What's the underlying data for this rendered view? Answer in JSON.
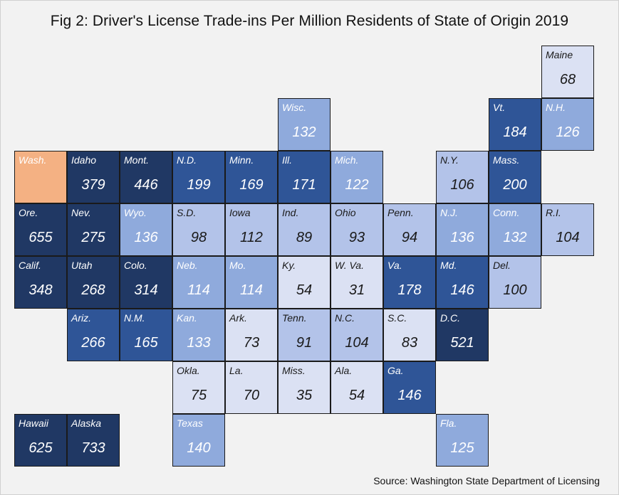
{
  "title": "Fig 2: Driver's License Trade-ins Per Million Residents of State of Origin 2019",
  "source": "Source: Washington State Department of Licensing",
  "colors": {
    "home": "#f4b183",
    "lightest": "#dbe1f3",
    "light": "#b3c3e9",
    "medium": "#8faadc",
    "dark": "#2f5597",
    "darkest": "#203864"
  },
  "chart_data": {
    "type": "heatmap",
    "layout": "state tile grid map",
    "title": "Fig 2: Driver's License Trade-ins Per Million Residents of State of Origin 2019",
    "cells": [
      {
        "state": "Maine",
        "value": "68",
        "col": 10,
        "row": 0,
        "shade": "lightest"
      },
      {
        "state": "Wisc.",
        "value": "132",
        "col": 5,
        "row": 1,
        "shade": "medium"
      },
      {
        "state": "Vt.",
        "value": "184",
        "col": 9,
        "row": 1,
        "shade": "dark"
      },
      {
        "state": "N.H.",
        "value": "126",
        "col": 10,
        "row": 1,
        "shade": "medium"
      },
      {
        "state": "Wash.",
        "value": "",
        "col": 0,
        "row": 2,
        "shade": "home"
      },
      {
        "state": "Idaho",
        "value": "379",
        "col": 1,
        "row": 2,
        "shade": "darkest"
      },
      {
        "state": "Mont.",
        "value": "446",
        "col": 2,
        "row": 2,
        "shade": "darkest"
      },
      {
        "state": "N.D.",
        "value": "199",
        "col": 3,
        "row": 2,
        "shade": "dark"
      },
      {
        "state": "Minn.",
        "value": "169",
        "col": 4,
        "row": 2,
        "shade": "dark"
      },
      {
        "state": "Ill.",
        "value": "171",
        "col": 5,
        "row": 2,
        "shade": "dark"
      },
      {
        "state": "Mich.",
        "value": "122",
        "col": 6,
        "row": 2,
        "shade": "medium"
      },
      {
        "state": "N.Y.",
        "value": "106",
        "col": 8,
        "row": 2,
        "shade": "light"
      },
      {
        "state": "Mass.",
        "value": "200",
        "col": 9,
        "row": 2,
        "shade": "dark"
      },
      {
        "state": "Ore.",
        "value": "655",
        "col": 0,
        "row": 3,
        "shade": "darkest"
      },
      {
        "state": "Nev.",
        "value": "275",
        "col": 1,
        "row": 3,
        "shade": "darkest"
      },
      {
        "state": "Wyo.",
        "value": "136",
        "col": 2,
        "row": 3,
        "shade": "medium"
      },
      {
        "state": "S.D.",
        "value": "98",
        "col": 3,
        "row": 3,
        "shade": "light"
      },
      {
        "state": "Iowa",
        "value": "112",
        "col": 4,
        "row": 3,
        "shade": "light"
      },
      {
        "state": "Ind.",
        "value": "89",
        "col": 5,
        "row": 3,
        "shade": "light"
      },
      {
        "state": "Ohio",
        "value": "93",
        "col": 6,
        "row": 3,
        "shade": "light"
      },
      {
        "state": "Penn.",
        "value": "94",
        "col": 7,
        "row": 3,
        "shade": "light"
      },
      {
        "state": "N.J.",
        "value": "136",
        "col": 8,
        "row": 3,
        "shade": "medium"
      },
      {
        "state": "Conn.",
        "value": "132",
        "col": 9,
        "row": 3,
        "shade": "medium"
      },
      {
        "state": "R.I.",
        "value": "104",
        "col": 10,
        "row": 3,
        "shade": "light"
      },
      {
        "state": "Calif.",
        "value": "348",
        "col": 0,
        "row": 4,
        "shade": "darkest"
      },
      {
        "state": "Utah",
        "value": "268",
        "col": 1,
        "row": 4,
        "shade": "darkest"
      },
      {
        "state": "Colo.",
        "value": "314",
        "col": 2,
        "row": 4,
        "shade": "darkest"
      },
      {
        "state": "Neb.",
        "value": "114",
        "col": 3,
        "row": 4,
        "shade": "medium"
      },
      {
        "state": "Mo.",
        "value": "114",
        "col": 4,
        "row": 4,
        "shade": "medium"
      },
      {
        "state": "Ky.",
        "value": "54",
        "col": 5,
        "row": 4,
        "shade": "lightest"
      },
      {
        "state": "W. Va.",
        "value": "31",
        "col": 6,
        "row": 4,
        "shade": "lightest"
      },
      {
        "state": "Va.",
        "value": "178",
        "col": 7,
        "row": 4,
        "shade": "dark"
      },
      {
        "state": "Md.",
        "value": "146",
        "col": 8,
        "row": 4,
        "shade": "dark"
      },
      {
        "state": "Del.",
        "value": "100",
        "col": 9,
        "row": 4,
        "shade": "light"
      },
      {
        "state": "Ariz.",
        "value": "266",
        "col": 1,
        "row": 5,
        "shade": "dark"
      },
      {
        "state": "N.M.",
        "value": "165",
        "col": 2,
        "row": 5,
        "shade": "dark"
      },
      {
        "state": "Kan.",
        "value": "133",
        "col": 3,
        "row": 5,
        "shade": "medium"
      },
      {
        "state": "Ark.",
        "value": "73",
        "col": 4,
        "row": 5,
        "shade": "lightest"
      },
      {
        "state": "Tenn.",
        "value": "91",
        "col": 5,
        "row": 5,
        "shade": "light"
      },
      {
        "state": "N.C.",
        "value": "104",
        "col": 6,
        "row": 5,
        "shade": "light"
      },
      {
        "state": "S.C.",
        "value": "83",
        "col": 7,
        "row": 5,
        "shade": "lightest"
      },
      {
        "state": "D.C.",
        "value": "521",
        "col": 8,
        "row": 5,
        "shade": "darkest"
      },
      {
        "state": "Okla.",
        "value": "75",
        "col": 3,
        "row": 6,
        "shade": "lightest"
      },
      {
        "state": "La.",
        "value": "70",
        "col": 4,
        "row": 6,
        "shade": "lightest"
      },
      {
        "state": "Miss.",
        "value": "35",
        "col": 5,
        "row": 6,
        "shade": "lightest"
      },
      {
        "state": "Ala.",
        "value": "54",
        "col": 6,
        "row": 6,
        "shade": "lightest"
      },
      {
        "state": "Ga.",
        "value": "146",
        "col": 7,
        "row": 6,
        "shade": "dark"
      },
      {
        "state": "Hawaii",
        "value": "625",
        "col": 0,
        "row": 7,
        "shade": "darkest"
      },
      {
        "state": "Alaska",
        "value": "733",
        "col": 1,
        "row": 7,
        "shade": "darkest"
      },
      {
        "state": "Texas",
        "value": "140",
        "col": 3,
        "row": 7,
        "shade": "medium"
      },
      {
        "state": "Fla.",
        "value": "125",
        "col": 8,
        "row": 7,
        "shade": "medium"
      }
    ]
  }
}
